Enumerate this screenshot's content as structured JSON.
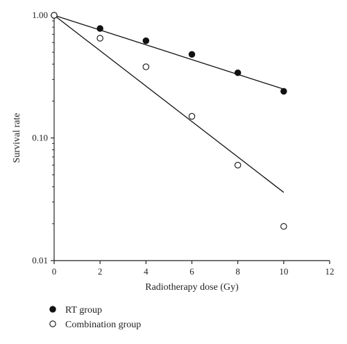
{
  "chart_data": {
    "type": "scatter",
    "title": "",
    "xlabel": "Radiotherapy dose (Gy)",
    "ylabel": "Survival rate",
    "xlim": [
      0,
      12
    ],
    "ylim": [
      0.01,
      1.0
    ],
    "yscale": "log",
    "grid": false,
    "legend_position": "bottom-left",
    "x_ticks": [
      0,
      2,
      4,
      6,
      8,
      10,
      12
    ],
    "x_tick_labels": [
      "0",
      "2",
      "4",
      "6",
      "8",
      "10",
      "12"
    ],
    "y_ticks": [
      0.01,
      0.1,
      1.0
    ],
    "y_tick_labels": [
      "0.01",
      "0.10",
      "1.00"
    ],
    "series": [
      {
        "name": "RT group",
        "marker": "filled-circle",
        "color": "#111111",
        "x": [
          0,
          2,
          4,
          6,
          8,
          10
        ],
        "y": [
          1.0,
          0.78,
          0.62,
          0.48,
          0.34,
          0.24
        ],
        "fit": {
          "x": [
            0,
            10
          ],
          "y": [
            1.0,
            0.25
          ]
        }
      },
      {
        "name": "Combination group",
        "marker": "open-circle",
        "color": "#111111",
        "x": [
          0,
          2,
          4,
          6,
          8,
          10
        ],
        "y": [
          1.0,
          0.65,
          0.38,
          0.15,
          0.06,
          0.019
        ],
        "fit": {
          "x": [
            0,
            10
          ],
          "y": [
            1.0,
            0.036
          ]
        }
      }
    ]
  }
}
